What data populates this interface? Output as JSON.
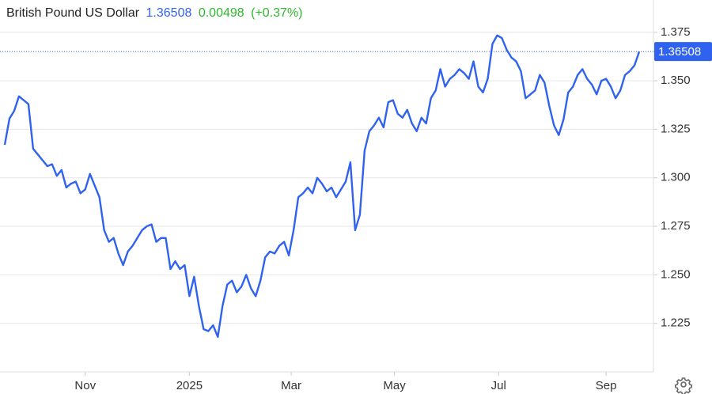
{
  "chart_data": {
    "type": "line",
    "title": "British Pound US Dollar",
    "last_price": 1.36508,
    "change": 0.00498,
    "change_pct": "(+0.37%)",
    "color": "#2f62ef",
    "grid": true,
    "xlim": [
      -1,
      137
    ],
    "xticks": [
      {
        "value": 17,
        "label": "Nov"
      },
      {
        "value": 39,
        "label": "2025"
      },
      {
        "value": 60.5,
        "label": "Mar"
      },
      {
        "value": 82.3,
        "label": "May"
      },
      {
        "value": 104.3,
        "label": "Jul"
      },
      {
        "value": 127,
        "label": "Sep"
      }
    ],
    "ylim": [
      1.2,
      1.39
    ],
    "yticks": [
      1.225,
      {
        "value": 1.25,
        "label": "1.250"
      },
      1.275,
      {
        "value": 1.3,
        "label": "1.300"
      },
      1.325,
      {
        "value": 1.35,
        "label": "1.350"
      },
      1.375
    ],
    "values": [
      1.317,
      1.3305,
      1.3345,
      1.342,
      1.34,
      1.338,
      1.315,
      1.312,
      1.309,
      1.306,
      1.307,
      1.301,
      1.304,
      1.295,
      1.297,
      1.298,
      1.292,
      1.294,
      1.302,
      1.296,
      1.29,
      1.273,
      1.267,
      1.269,
      1.261,
      1.255,
      1.262,
      1.265,
      1.269,
      1.273,
      1.275,
      1.276,
      1.267,
      1.269,
      1.269,
      1.253,
      1.257,
      1.253,
      1.255,
      1.239,
      1.249,
      1.234,
      1.222,
      1.221,
      1.224,
      1.218,
      1.234,
      1.245,
      1.247,
      1.241,
      1.244,
      1.25,
      1.243,
      1.239,
      1.247,
      1.259,
      1.262,
      1.261,
      1.265,
      1.267,
      1.26,
      1.273,
      1.29,
      1.292,
      1.295,
      1.292,
      1.3,
      1.297,
      1.293,
      1.295,
      1.29,
      1.294,
      1.298,
      1.308,
      1.273,
      1.281,
      1.314,
      1.324,
      1.327,
      1.331,
      1.326,
      1.339,
      1.34,
      1.333,
      1.331,
      1.335,
      1.328,
      1.324,
      1.331,
      1.328,
      1.341,
      1.345,
      1.356,
      1.347,
      1.351,
      1.353,
      1.356,
      1.354,
      1.351,
      1.36,
      1.347,
      1.344,
      1.351,
      1.369,
      1.3734,
      1.372,
      1.366,
      1.362,
      1.36,
      1.355,
      1.341,
      1.343,
      1.345,
      1.353,
      1.349,
      1.337,
      1.327,
      1.322,
      1.33,
      1.344,
      1.347,
      1.353,
      1.356,
      1.351,
      1.348,
      1.343,
      1.35,
      1.351,
      1.347,
      1.341,
      1.345,
      1.353,
      1.355,
      1.358,
      1.36508
    ]
  }
}
